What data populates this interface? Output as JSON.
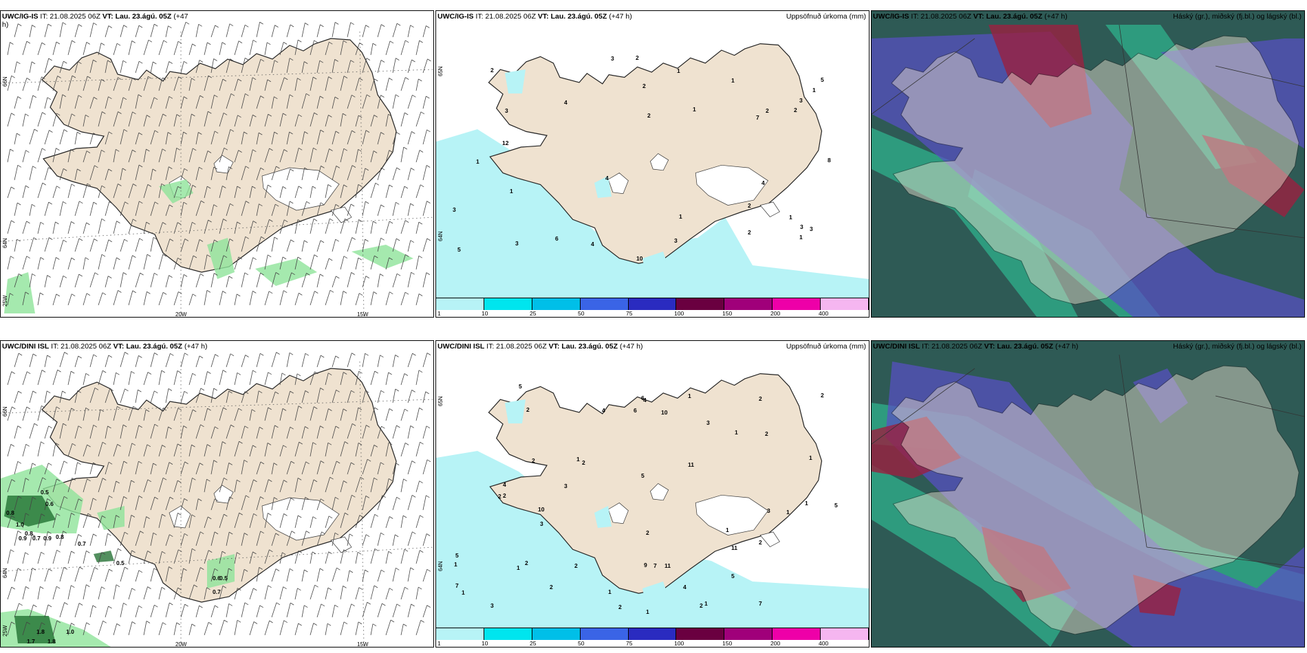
{
  "panels": [
    {
      "id": "p1",
      "kind": "wind",
      "model": "UWC/IG-IS",
      "title_rest": " IT: 21.08.2025 06Z ",
      "vt_label": "VT:",
      "vt_value": "Lau. 23.ágú. 05Z",
      "lead": " (+47",
      "lead2": "h)",
      "right": "",
      "lat_labels": [
        "66N",
        "64N",
        "25W"
      ],
      "lon_labels": [
        "20W",
        "15W"
      ],
      "point_values": []
    },
    {
      "id": "p2",
      "kind": "precip",
      "model": "UWC/IG-IS",
      "title_rest": " IT: 21.08.2025 06Z ",
      "vt_label": "VT:",
      "vt_value": "Lau. 23.ágú. 05Z",
      "lead": " (+47 h)",
      "right": "Uppsöfnuð úrkoma (mm)",
      "lat_labels": [
        "65N",
        "64N"
      ],
      "point_values": [
        "3",
        "3",
        "1",
        "1",
        "1",
        "2",
        "2",
        "1",
        "4",
        "3",
        "6",
        "4",
        "5",
        "10",
        "8",
        "5",
        "3",
        "3",
        "2",
        "1",
        "1",
        "2",
        "1",
        "2",
        "12",
        "7",
        "3",
        "3",
        "4",
        "4",
        "2",
        "2",
        "2",
        "3",
        "1",
        "1"
      ]
    },
    {
      "id": "p3",
      "kind": "cloud",
      "model": "UWC/IG-IS",
      "title_rest": " IT: 21.08.2025 06Z ",
      "vt_label": "VT:",
      "vt_value": "Lau. 23.ágú. 05Z",
      "lead": " (+47 h)",
      "right": "Háský (gr.), miðský (fj.bl.) og lágský (bl.)"
    },
    {
      "id": "p4",
      "kind": "wind",
      "model": "UWC/DINI ISL",
      "title_rest": " IT: 21.08.2025 06Z ",
      "vt_label": "VT:",
      "vt_value": "Lau. 23.ágú. 05Z",
      "lead": " (+47 h)",
      "right": "",
      "lat_labels": [
        "66N",
        "64N",
        "25W"
      ],
      "lon_labels": [
        "20W",
        "15W"
      ],
      "point_values": [
        "0.5",
        "0.6",
        "0.8",
        "1.0",
        "0.8",
        "0.9",
        "0.7",
        "0.9",
        "0.8",
        "0.7",
        "0.5",
        "0.6",
        "0.5",
        "0.7",
        "1.8",
        "1.0",
        "1.7",
        "1.8"
      ]
    },
    {
      "id": "p5",
      "kind": "precip",
      "model": "UWC/DINI ISL",
      "title_rest": " IT: 21.08.2025 06Z ",
      "vt_label": "VT:",
      "vt_value": "Lau. 23.ágú. 05Z",
      "lead": " (+47 h)",
      "right": "Uppsöfnuð úrkoma (mm)",
      "lat_labels": [
        "65N",
        "64N"
      ],
      "point_values": [
        "2",
        "2",
        "3",
        "3",
        "2",
        "2",
        "1",
        "4",
        "1",
        "1",
        "1",
        "2",
        "2",
        "11",
        "7",
        "1",
        "10",
        "1",
        "4",
        "4",
        "2",
        "2",
        "1",
        "11",
        "11",
        "1",
        "3",
        "5",
        "5",
        "5",
        "6",
        "5",
        "10",
        "9",
        "4",
        "2",
        "1",
        "2",
        "3",
        "7",
        "1",
        "2",
        "2",
        "2",
        "3",
        "1",
        "7",
        "6",
        "5",
        "1",
        "2",
        "2",
        "1"
      ]
    },
    {
      "id": "p6",
      "kind": "cloud",
      "model": "UWC/DINI ISL",
      "title_rest": " IT: 21.08.2025 06Z ",
      "vt_label": "VT:",
      "vt_value": "Lau. 23.ágú. 05Z",
      "lead": " (+47 h)",
      "right": "Háský (gr.), miðský (fj.bl.) og lágský (bl.)"
    }
  ],
  "colorbar": {
    "labels": [
      "1",
      "10",
      "25",
      "50",
      "75",
      "100",
      "150",
      "200",
      "400"
    ],
    "colors": [
      "#b7f3f6",
      "#00e5ee",
      "#00bfe8",
      "#3a64e6",
      "#2a2bc0",
      "#6a0040",
      "#a0007a",
      "#ee00a8",
      "#f5b6f0"
    ]
  },
  "colors": {
    "land": "#efe2d0",
    "sea_precip": "#b7f3f6",
    "green": "#8fe39a",
    "dark_green": "#1a6a2a",
    "cloud_dark": "#2e5a55",
    "cloud_blue": "#5a4fc8",
    "cloud_red": "#9a2040"
  }
}
